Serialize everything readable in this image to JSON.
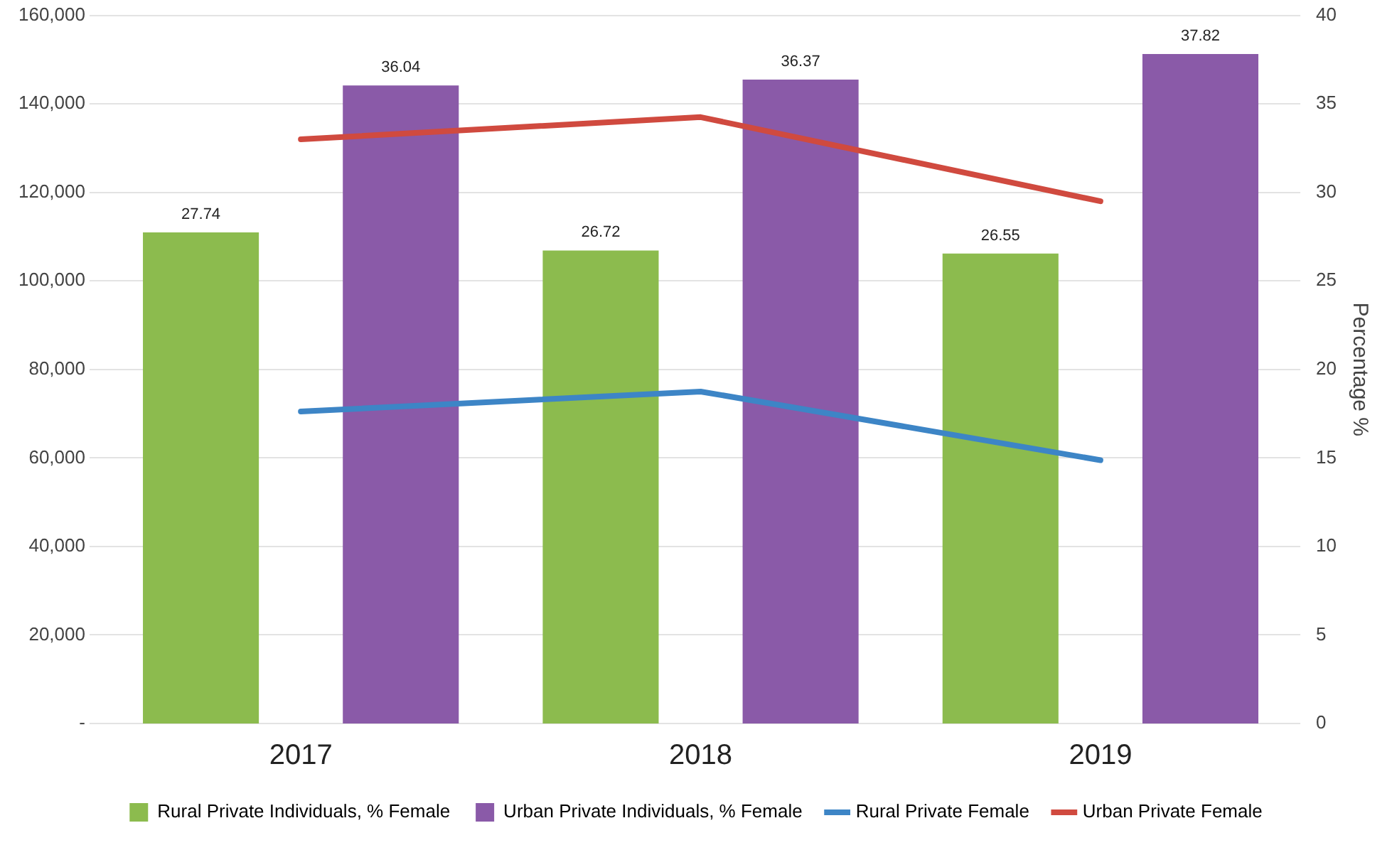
{
  "chart_data": {
    "type": "bar",
    "categories": [
      "2017",
      "2018",
      "2019"
    ],
    "series": [
      {
        "name": "Rural Private Individuals, % Female",
        "color": "#8cbb4e",
        "axis": "y2",
        "values": [
          27.74,
          26.72,
          26.55
        ],
        "value_labels": [
          "27.74",
          "26.72",
          "26.55"
        ]
      },
      {
        "name": "Urban Private Individuals, % Female",
        "color": "#8a5aa8",
        "axis": "y2",
        "values": [
          36.04,
          36.37,
          37.82
        ],
        "value_labels": [
          "36.04",
          "36.37",
          "37.82"
        ]
      },
      {
        "name": "Rural Private Female",
        "type": "line",
        "color": "#3d85c6",
        "values": [
          70500,
          75000,
          59500
        ]
      },
      {
        "name": "Urban Private Female",
        "type": "line",
        "color": "#d04a3f",
        "values": [
          132000,
          137000,
          118000
        ]
      }
    ],
    "ylim": [
      0,
      160000
    ],
    "yticks": [
      {
        "value": 0,
        "label": "-"
      },
      {
        "value": 20000,
        "label": "20,000"
      },
      {
        "value": 40000,
        "label": "40,000"
      },
      {
        "value": 60000,
        "label": "60,000"
      },
      {
        "value": 80000,
        "label": "80,000"
      },
      {
        "value": 100000,
        "label": "100,000"
      },
      {
        "value": 120000,
        "label": "120,000"
      },
      {
        "value": 140000,
        "label": "140,000"
      },
      {
        "value": 160000,
        "label": "160,000"
      }
    ],
    "y2lim": [
      0,
      40
    ],
    "y2ticks": [
      0,
      5,
      10,
      15,
      20,
      25,
      30,
      35,
      40
    ],
    "y2label": "Percentage %",
    "grid": "y",
    "legend": "bottom",
    "marker": "none"
  }
}
